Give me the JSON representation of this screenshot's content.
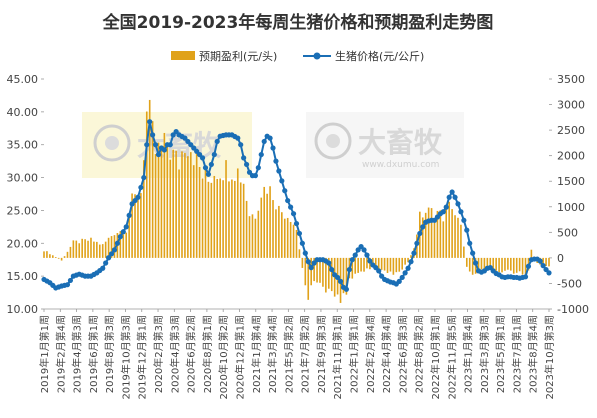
{
  "chart_data": {
    "type": "bar+line",
    "title": "全国2019-2023年每周生猪价格和预期盈利走势图",
    "legend": {
      "position": "top-center",
      "items": [
        {
          "label": "预期盈利(元/头)",
          "color": "#e0a21a",
          "kind": "bar"
        },
        {
          "label": "生猪价格(元/公斤)",
          "color": "#1a6eb5",
          "kind": "line"
        }
      ]
    },
    "y_left": {
      "min": 10,
      "max": 45,
      "ticks": [
        "10.00",
        "15.00",
        "20.00",
        "25.00",
        "30.00",
        "35.00",
        "40.00",
        "45.00"
      ]
    },
    "y_right": {
      "min": -1000,
      "max": 3500,
      "ticks": [
        "-1000",
        "-500",
        "0",
        "500",
        "1000",
        "1500",
        "2000",
        "2500",
        "3000",
        "3500"
      ]
    },
    "x_labels": [
      "2019年1月第1周",
      "2019年2月第4周",
      "2019年4月第3周",
      "2019年6月第1周",
      "2019年8月第3周",
      "2019年10月第3周",
      "2019年12月第1周",
      "2020年2月第3周",
      "2020年4月第3周",
      "2020年6月第2周",
      "2020年8月第1周",
      "2020年10月第2周",
      "2020年12月第1周",
      "2021年1月第4周",
      "2021年3月第4周",
      "2021年5月第2周",
      "2021年7月第2周",
      "2021年9月第3周",
      "2021年11月第1周",
      "2022年1月第1周",
      "2022年2月第4周",
      "2022年4月第4周",
      "2022年6月第3周",
      "2022年8月第2周",
      "2022年10月第1周",
      "2022年11月第5周",
      "2023年1月第4周",
      "2023年3月第3周",
      "2023年5月第1周",
      "2023年7月第1周",
      "2023年8月第4周",
      "2023年10月第3周"
    ],
    "price_keypoints": [
      [
        0,
        14.5
      ],
      [
        2,
        14.0
      ],
      [
        4,
        13.2
      ],
      [
        6,
        13.5
      ],
      [
        8,
        13.7
      ],
      [
        10,
        15.0
      ],
      [
        12,
        15.3
      ],
      [
        14,
        15.0
      ],
      [
        16,
        15.0
      ],
      [
        18,
        15.5
      ],
      [
        20,
        16.2
      ],
      [
        22,
        17.8
      ],
      [
        24,
        19.0
      ],
      [
        26,
        21.0
      ],
      [
        28,
        22.5
      ],
      [
        30,
        26.0
      ],
      [
        32,
        27.0
      ],
      [
        34,
        30.0
      ],
      [
        35,
        35.0
      ],
      [
        36,
        38.5
      ],
      [
        37,
        36.5
      ],
      [
        38,
        35.0
      ],
      [
        39,
        33.5
      ],
      [
        40,
        34.5
      ],
      [
        41,
        34.2
      ],
      [
        42,
        35.0
      ],
      [
        43,
        35.0
      ],
      [
        44,
        36.5
      ],
      [
        45,
        37.0
      ],
      [
        46,
        36.5
      ],
      [
        48,
        36.0
      ],
      [
        50,
        35.0
      ],
      [
        52,
        34.0
      ],
      [
        54,
        33.0
      ],
      [
        55,
        31.5
      ],
      [
        56,
        30.5
      ],
      [
        57,
        32.0
      ],
      [
        58,
        33.5
      ],
      [
        59,
        35.5
      ],
      [
        60,
        36.3
      ],
      [
        62,
        36.5
      ],
      [
        64,
        36.5
      ],
      [
        66,
        36.0
      ],
      [
        67,
        35.0
      ],
      [
        68,
        33.0
      ],
      [
        69,
        32.0
      ],
      [
        70,
        30.8
      ],
      [
        71,
        30.3
      ],
      [
        72,
        30.3
      ],
      [
        73,
        31.5
      ],
      [
        74,
        33.5
      ],
      [
        75,
        35.5
      ],
      [
        76,
        36.3
      ],
      [
        77,
        36.0
      ],
      [
        78,
        34.5
      ],
      [
        79,
        32.5
      ],
      [
        80,
        31.0
      ],
      [
        81,
        29.5
      ],
      [
        82,
        28.0
      ],
      [
        83,
        26.5
      ],
      [
        84,
        25.5
      ],
      [
        85,
        24.5
      ],
      [
        86,
        23.0
      ],
      [
        87,
        21.5
      ],
      [
        88,
        20.0
      ],
      [
        89,
        18.5
      ],
      [
        90,
        17.2
      ],
      [
        91,
        16.3
      ],
      [
        92,
        17.0
      ],
      [
        93,
        17.5
      ],
      [
        94,
        17.5
      ],
      [
        95,
        17.5
      ],
      [
        96,
        17.3
      ],
      [
        97,
        17.0
      ],
      [
        98,
        16.0
      ],
      [
        99,
        15.2
      ],
      [
        100,
        14.8
      ],
      [
        101,
        14.2
      ],
      [
        102,
        13.3
      ],
      [
        103,
        13.0
      ],
      [
        104,
        16.0
      ],
      [
        105,
        17.5
      ],
      [
        106,
        18.2
      ],
      [
        107,
        19.0
      ],
      [
        108,
        19.5
      ],
      [
        109,
        19.0
      ],
      [
        110,
        18.2
      ],
      [
        111,
        17.3
      ],
      [
        112,
        16.7
      ],
      [
        113,
        16.3
      ],
      [
        114,
        15.8
      ],
      [
        115,
        15.0
      ],
      [
        116,
        14.5
      ],
      [
        117,
        14.3
      ],
      [
        118,
        14.1
      ],
      [
        119,
        14.0
      ],
      [
        120,
        13.8
      ],
      [
        121,
        14.2
      ],
      [
        122,
        14.8
      ],
      [
        123,
        15.5
      ],
      [
        124,
        16.2
      ],
      [
        125,
        17.2
      ],
      [
        126,
        18.5
      ],
      [
        127,
        20.0
      ],
      [
        128,
        21.5
      ],
      [
        129,
        22.5
      ],
      [
        130,
        23.2
      ],
      [
        131,
        23.4
      ],
      [
        132,
        23.5
      ],
      [
        133,
        23.5
      ],
      [
        134,
        24.0
      ],
      [
        135,
        24.5
      ],
      [
        136,
        24.8
      ],
      [
        137,
        25.5
      ],
      [
        138,
        27.0
      ],
      [
        139,
        27.8
      ],
      [
        140,
        27.0
      ],
      [
        141,
        26.0
      ],
      [
        142,
        24.8
      ],
      [
        143,
        23.5
      ],
      [
        144,
        22.0
      ],
      [
        145,
        20.0
      ],
      [
        146,
        18.5
      ],
      [
        147,
        17.0
      ],
      [
        148,
        15.8
      ],
      [
        149,
        15.6
      ],
      [
        150,
        15.8
      ],
      [
        151,
        16.2
      ],
      [
        152,
        16.3
      ],
      [
        153,
        15.8
      ],
      [
        154,
        15.4
      ],
      [
        155,
        15.2
      ],
      [
        156,
        14.9
      ],
      [
        157,
        14.8
      ],
      [
        158,
        14.9
      ],
      [
        159,
        14.9
      ],
      [
        160,
        14.8
      ],
      [
        161,
        14.8
      ],
      [
        162,
        14.7
      ],
      [
        163,
        14.8
      ],
      [
        164,
        14.9
      ],
      [
        165,
        16.5
      ],
      [
        166,
        17.5
      ],
      [
        167,
        17.6
      ],
      [
        168,
        17.6
      ],
      [
        169,
        17.3
      ],
      [
        170,
        16.6
      ],
      [
        171,
        16.0
      ],
      [
        172,
        15.5
      ]
    ],
    "profit_keypoints": [
      [
        0,
        150
      ],
      [
        6,
        -50
      ],
      [
        10,
        300
      ],
      [
        16,
        350
      ],
      [
        20,
        250
      ],
      [
        24,
        500
      ],
      [
        28,
        550
      ],
      [
        30,
        1100
      ],
      [
        33,
        1300
      ],
      [
        34,
        2100
      ],
      [
        35,
        2800
      ],
      [
        36,
        2700
      ],
      [
        38,
        2050
      ],
      [
        42,
        2200
      ],
      [
        44,
        2000
      ],
      [
        46,
        1850
      ],
      [
        48,
        2300
      ],
      [
        50,
        2200
      ],
      [
        54,
        1600
      ],
      [
        56,
        1500
      ],
      [
        58,
        1700
      ],
      [
        62,
        1750
      ],
      [
        64,
        1750
      ],
      [
        66,
        1700
      ],
      [
        68,
        1500
      ],
      [
        70,
        850
      ],
      [
        72,
        850
      ],
      [
        74,
        1300
      ],
      [
        76,
        1400
      ],
      [
        78,
        1250
      ],
      [
        80,
        950
      ],
      [
        84,
        800
      ],
      [
        86,
        550
      ],
      [
        88,
        -200
      ],
      [
        90,
        -750
      ],
      [
        92,
        -450
      ],
      [
        94,
        -450
      ],
      [
        96,
        -600
      ],
      [
        98,
        -750
      ],
      [
        103,
        -800
      ],
      [
        104,
        -400
      ],
      [
        108,
        -250
      ],
      [
        112,
        -200
      ],
      [
        116,
        -250
      ],
      [
        120,
        -300
      ],
      [
        124,
        -100
      ],
      [
        126,
        200
      ],
      [
        128,
        800
      ],
      [
        130,
        900
      ],
      [
        134,
        900
      ],
      [
        136,
        800
      ],
      [
        138,
        1000
      ],
      [
        139,
        1050
      ],
      [
        140,
        850
      ],
      [
        142,
        600
      ],
      [
        144,
        -200
      ],
      [
        146,
        -300
      ],
      [
        150,
        -200
      ],
      [
        154,
        -250
      ],
      [
        158,
        -250
      ],
      [
        162,
        -300
      ],
      [
        164,
        -350
      ],
      [
        165,
        -250
      ],
      [
        166,
        150
      ],
      [
        168,
        -100
      ],
      [
        170,
        -150
      ],
      [
        172,
        -150
      ]
    ]
  },
  "watermark": {
    "text": "大畜牧",
    "subtext": "www.dxumu.com"
  }
}
